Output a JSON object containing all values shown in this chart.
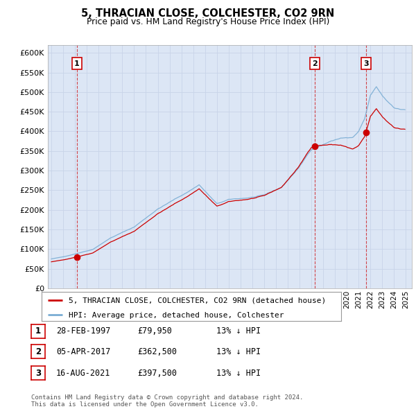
{
  "title": "5, THRACIAN CLOSE, COLCHESTER, CO2 9RN",
  "subtitle": "Price paid vs. HM Land Registry's House Price Index (HPI)",
  "ylabel_ticks": [
    "£0",
    "£50K",
    "£100K",
    "£150K",
    "£200K",
    "£250K",
    "£300K",
    "£350K",
    "£400K",
    "£450K",
    "£500K",
    "£550K",
    "£600K"
  ],
  "ytick_values": [
    0,
    50000,
    100000,
    150000,
    200000,
    250000,
    300000,
    350000,
    400000,
    450000,
    500000,
    550000,
    600000
  ],
  "ylim": [
    0,
    620000
  ],
  "xlim_start": 1994.7,
  "xlim_end": 2025.5,
  "background_color": "#dce6f5",
  "plot_bg_color": "#dce6f5",
  "grid_color": "#c8d4e8",
  "sale1_x": 1997.15,
  "sale1_y": 79950,
  "sale2_x": 2017.27,
  "sale2_y": 362500,
  "sale3_x": 2021.62,
  "sale3_y": 397500,
  "sale_color": "#cc0000",
  "hpi_color": "#7aadd4",
  "vline_color": "#cc0000",
  "legend_label1": "5, THRACIAN CLOSE, COLCHESTER, CO2 9RN (detached house)",
  "legend_label2": "HPI: Average price, detached house, Colchester",
  "table_rows": [
    {
      "num": "1",
      "date": "28-FEB-1997",
      "price": "£79,950",
      "hpi": "13% ↓ HPI"
    },
    {
      "num": "2",
      "date": "05-APR-2017",
      "price": "£362,500",
      "hpi": "13% ↓ HPI"
    },
    {
      "num": "3",
      "date": "16-AUG-2021",
      "price": "£397,500",
      "hpi": "13% ↓ HPI"
    }
  ],
  "footer": "Contains HM Land Registry data © Crown copyright and database right 2024.\nThis data is licensed under the Open Government Licence v3.0.",
  "xtick_years": [
    1995,
    1996,
    1997,
    1998,
    1999,
    2000,
    2001,
    2002,
    2003,
    2004,
    2005,
    2006,
    2007,
    2008,
    2009,
    2010,
    2011,
    2012,
    2013,
    2014,
    2015,
    2016,
    2017,
    2018,
    2019,
    2020,
    2021,
    2022,
    2023,
    2024,
    2025
  ]
}
